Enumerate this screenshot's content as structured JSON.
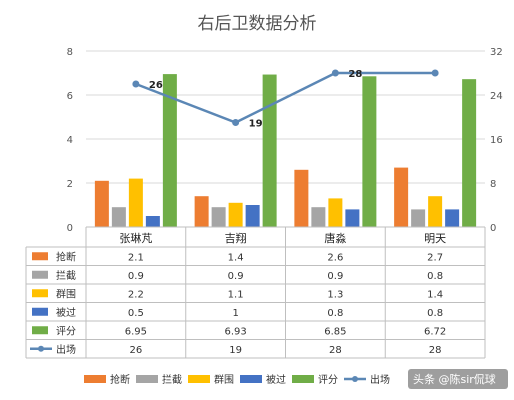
{
  "chart_data": {
    "type": "bar",
    "title": "右后卫数据分析",
    "categories": [
      "张琳芃",
      "吉翔",
      "唐淼",
      "明天"
    ],
    "y_left": {
      "min": 0,
      "max": 8,
      "ticks": [
        0,
        2,
        4,
        6,
        8
      ]
    },
    "y_right": {
      "min": 0,
      "max": 32,
      "ticks": [
        0,
        8,
        16,
        24,
        32
      ]
    },
    "series": [
      {
        "name": "抢断",
        "kind": "bar",
        "axis": "left",
        "color": "#ED7D31",
        "values": [
          "2.1",
          "1.4",
          "2.6",
          "2.7"
        ]
      },
      {
        "name": "拦截",
        "kind": "bar",
        "axis": "left",
        "color": "#A5A5A5",
        "values": [
          "0.9",
          "0.9",
          "0.9",
          "0.8"
        ]
      },
      {
        "name": "群围",
        "kind": "bar",
        "axis": "left",
        "color": "#FFC000",
        "values": [
          "2.2",
          "1.1",
          "1.3",
          "1.4"
        ]
      },
      {
        "name": "被过",
        "kind": "bar",
        "axis": "left",
        "color": "#4472C4",
        "values": [
          "0.5",
          "1",
          "0.8",
          "0.8"
        ]
      },
      {
        "name": "评分",
        "kind": "bar",
        "axis": "left",
        "color": "#70AD47",
        "values": [
          "6.95",
          "6.93",
          "6.85",
          "6.72"
        ]
      },
      {
        "name": "出场",
        "kind": "line",
        "axis": "right",
        "color": "#5B87B5",
        "values": [
          "26",
          "19",
          "28",
          "28"
        ],
        "labels": [
          "26",
          "19",
          "28",
          ""
        ]
      }
    ],
    "grid": true,
    "legend_position": "bottom",
    "has_data_table": true
  },
  "watermark": {
    "icon": "toutiao-icon",
    "text": "头条 @陈sir侃球"
  }
}
